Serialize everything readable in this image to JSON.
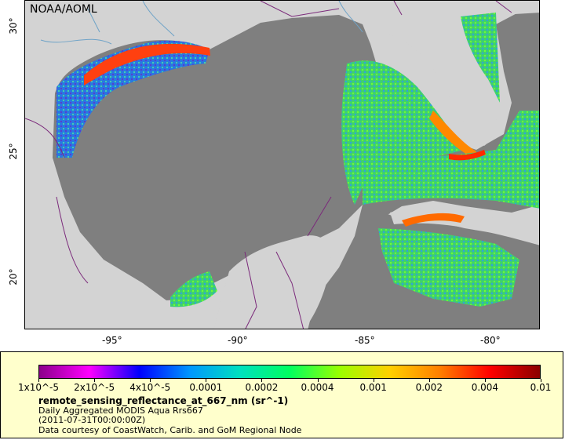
{
  "credit": "NOAA/AOML",
  "x_axis": {
    "ticks": [
      "-95°",
      "-90°",
      "-85°",
      "-80°"
    ]
  },
  "y_axis": {
    "ticks": [
      "30°",
      "25°",
      "20°"
    ]
  },
  "colors": {
    "land": "#d3d3d3",
    "ocean_nodata": "#7f7f7f",
    "border": "#7b2a7b",
    "river": "#6fa3c7"
  },
  "legend": {
    "colorbar_ticks": [
      "1x10^-5",
      "2x10^-5",
      "4x10^-5",
      "0.0001",
      "0.0002",
      "0.0004",
      "0.001",
      "0.002",
      "0.004",
      "0.01"
    ],
    "colorbar_colors": [
      "#8b008b",
      "#ff00ff",
      "#0000ff",
      "#0096ff",
      "#00e0c0",
      "#00ff60",
      "#9aff00",
      "#ffd000",
      "#ff7f00",
      "#ff0000",
      "#8b0000"
    ],
    "title": "remote_sensing_reflectance_at_667_nm (sr^-1)",
    "line1": "Daily Aggregated MODIS Aqua Rrs667",
    "line2": "(2011-07-31T00:00:00Z)",
    "line3": "Data courtesy of CoastWatch, Carib. and GoM Regional Node"
  }
}
